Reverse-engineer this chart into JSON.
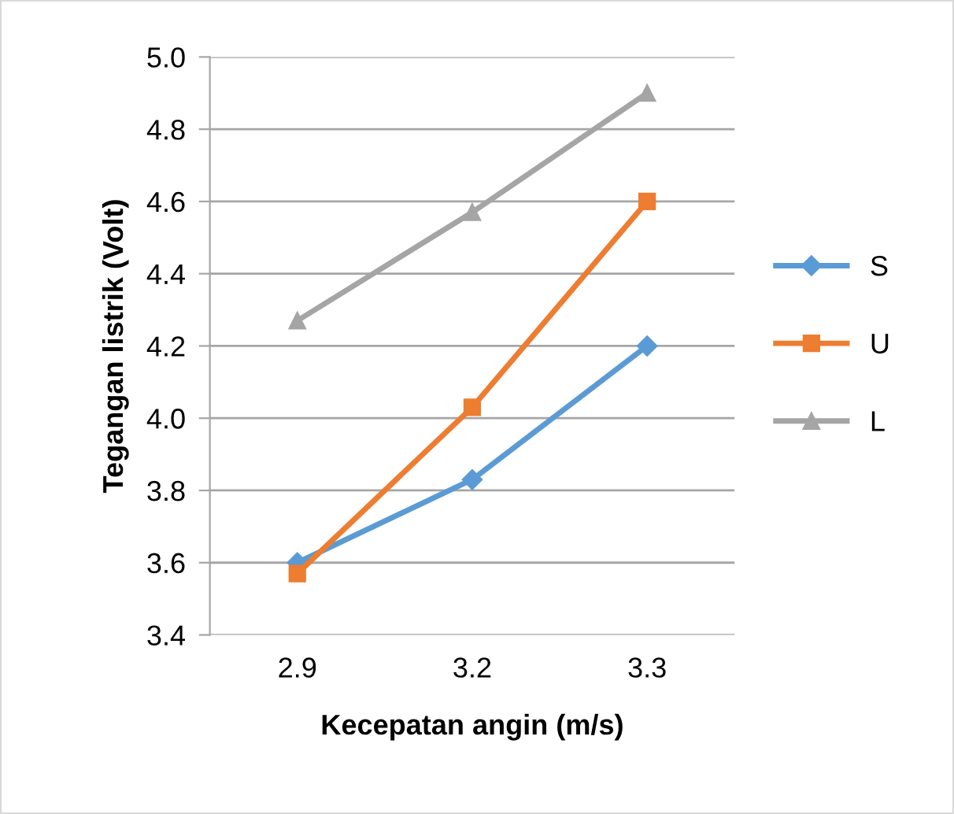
{
  "chart_data": {
    "type": "line",
    "xlabel": "Kecepatan angin (m/s)",
    "ylabel": "Tegangan listrik (Volt)",
    "categories": [
      "2.9",
      "3.2",
      "3.3"
    ],
    "series": [
      {
        "name": "S",
        "color": "#5b9bd5",
        "marker": "diamond",
        "values": [
          3.6,
          3.83,
          4.2
        ]
      },
      {
        "name": "U",
        "color": "#ed7d31",
        "marker": "square",
        "values": [
          3.57,
          4.03,
          4.6
        ]
      },
      {
        "name": "L",
        "color": "#a5a5a5",
        "marker": "triangle",
        "values": [
          4.27,
          4.57,
          4.9
        ]
      }
    ],
    "ylim": [
      3.4,
      5.0
    ],
    "yticks": [
      {
        "value": 3.4,
        "label": "3.4"
      },
      {
        "value": 3.6,
        "label": "3.6"
      },
      {
        "value": 3.8,
        "label": "3.8"
      },
      {
        "value": 4.0,
        "label": "4.0"
      },
      {
        "value": 4.2,
        "label": "4.2"
      },
      {
        "value": 4.4,
        "label": "4.4"
      },
      {
        "value": 4.6,
        "label": "4.6"
      },
      {
        "value": 4.8,
        "label": "4.8"
      },
      {
        "value": 5.0,
        "label": "5.0"
      }
    ],
    "grid": "y",
    "legend": "right"
  }
}
